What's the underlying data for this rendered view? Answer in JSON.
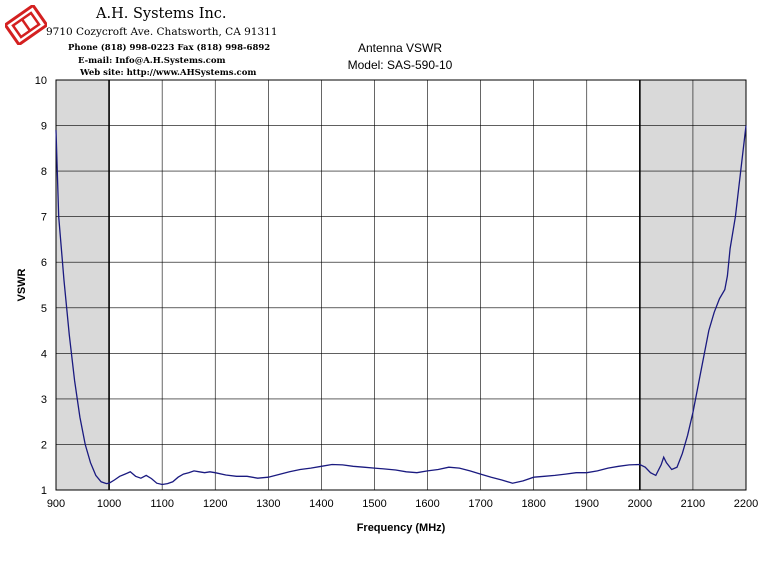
{
  "company": {
    "name": "A.H. Systems Inc.",
    "address": "9710 Cozycroft Ave. Chatsworth, CA 91311",
    "phone": "Phone (818) 998-0223 Fax (818) 998-6892",
    "email": "E-mail:  Info@A.H.Systems.com",
    "website": "Web site:  http://www.AHSystems.com",
    "logo_color": "#d42020"
  },
  "chart_data": {
    "type": "line",
    "title": "Antenna VSWR",
    "subtitle": "Model: SAS-590-10",
    "xlabel": "Frequency (MHz)",
    "ylabel": "VSWR",
    "xlim": [
      900,
      2200
    ],
    "ylim": [
      1,
      10
    ],
    "x_ticks": [
      "900",
      "1000",
      "1100",
      "1200",
      "1300",
      "1400",
      "1500",
      "1600",
      "1700",
      "1800",
      "1900",
      "2000",
      "2100",
      "2200"
    ],
    "y_ticks": [
      "1",
      "2",
      "3",
      "4",
      "5",
      "6",
      "7",
      "8",
      "9",
      "10"
    ],
    "grid": true,
    "shaded_bands": [
      [
        900,
        1000
      ],
      [
        2000,
        2200
      ]
    ],
    "band_color": "#d9d9d9",
    "line_color": "#1a1a80",
    "series": [
      {
        "x": [
          900,
          905,
          915,
          925,
          935,
          945,
          955,
          965,
          975,
          985,
          995,
          1000,
          1010,
          1020,
          1030,
          1040,
          1050,
          1060,
          1070,
          1080,
          1090,
          1100,
          1110,
          1120,
          1130,
          1140,
          1150,
          1160,
          1170,
          1180,
          1190,
          1200,
          1220,
          1240,
          1260,
          1280,
          1300,
          1320,
          1340,
          1360,
          1380,
          1400,
          1420,
          1440,
          1460,
          1480,
          1500,
          1520,
          1540,
          1560,
          1580,
          1600,
          1620,
          1640,
          1660,
          1680,
          1700,
          1720,
          1740,
          1760,
          1780,
          1800,
          1820,
          1840,
          1860,
          1880,
          1900,
          1920,
          1940,
          1960,
          1980,
          2000,
          2010,
          2020,
          2030,
          2040,
          2045,
          2050,
          2060,
          2070,
          2080,
          2090,
          2100,
          2110,
          2120,
          2130,
          2140,
          2150,
          2160,
          2165,
          2170,
          2180,
          2190,
          2200
        ],
        "y": [
          8.9,
          7.0,
          5.6,
          4.4,
          3.4,
          2.6,
          2.0,
          1.6,
          1.32,
          1.18,
          1.14,
          1.15,
          1.22,
          1.3,
          1.35,
          1.4,
          1.3,
          1.26,
          1.32,
          1.25,
          1.15,
          1.12,
          1.14,
          1.18,
          1.28,
          1.35,
          1.38,
          1.42,
          1.4,
          1.38,
          1.4,
          1.38,
          1.33,
          1.3,
          1.3,
          1.26,
          1.28,
          1.34,
          1.4,
          1.45,
          1.48,
          1.52,
          1.56,
          1.55,
          1.52,
          1.5,
          1.48,
          1.46,
          1.44,
          1.4,
          1.38,
          1.42,
          1.45,
          1.5,
          1.48,
          1.42,
          1.35,
          1.28,
          1.22,
          1.15,
          1.2,
          1.28,
          1.3,
          1.32,
          1.35,
          1.38,
          1.38,
          1.42,
          1.48,
          1.52,
          1.55,
          1.56,
          1.5,
          1.38,
          1.32,
          1.55,
          1.72,
          1.6,
          1.45,
          1.5,
          1.8,
          2.2,
          2.7,
          3.3,
          3.9,
          4.5,
          4.9,
          5.2,
          5.4,
          5.7,
          6.3,
          7.0,
          8.0,
          9.0
        ]
      }
    ]
  }
}
